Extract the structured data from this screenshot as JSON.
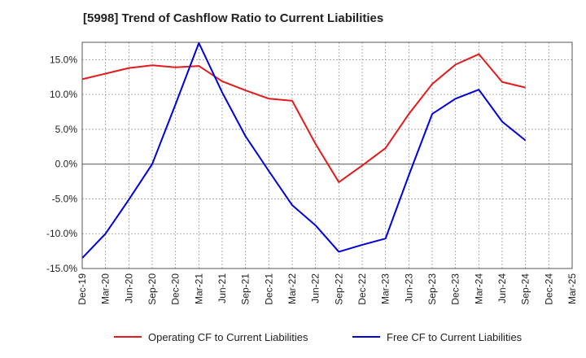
{
  "chart_data": {
    "type": "line",
    "title": "[5998]  Trend of Cashflow Ratio to Current Liabilities",
    "xlabel": "",
    "ylabel": "",
    "categories": [
      "Dec-19",
      "Mar-20",
      "Jun-20",
      "Sep-20",
      "Dec-20",
      "Mar-21",
      "Jun-21",
      "Sep-21",
      "Dec-21",
      "Mar-22",
      "Jun-22",
      "Sep-22",
      "Dec-22",
      "Mar-23",
      "Jun-23",
      "Sep-23",
      "Dec-23",
      "Mar-24",
      "Jun-24",
      "Sep-24",
      "Dec-24",
      "Mar-25"
    ],
    "y_ticks": [
      "15.0%",
      "10.0%",
      "5.0%",
      "0.0%",
      "-5.0%",
      "-10.0%",
      "-15.0%"
    ],
    "ylim": [
      -15,
      17.5
    ],
    "grid": true,
    "legend_position": "bottom",
    "series": [
      {
        "name": "Operating CF to Current Liabilities",
        "color": "#e41a1c",
        "values": [
          12.2,
          13.0,
          13.8,
          14.2,
          13.9,
          14.1,
          11.9,
          10.6,
          9.4,
          9.1,
          2.9,
          -2.6,
          -0.2,
          2.3,
          7.2,
          11.5,
          14.3,
          15.8,
          11.8,
          11.0,
          null,
          null
        ]
      },
      {
        "name": "Free CF to Current Liabilities",
        "color": "#0000dd",
        "values": [
          -13.5,
          -10.0,
          -5.1,
          0.0,
          8.6,
          17.4,
          10.3,
          4.0,
          -1.0,
          -5.9,
          -8.8,
          -12.6,
          -11.6,
          -10.7,
          -1.6,
          7.2,
          9.4,
          10.7,
          6.1,
          3.4,
          null,
          null
        ]
      }
    ]
  }
}
